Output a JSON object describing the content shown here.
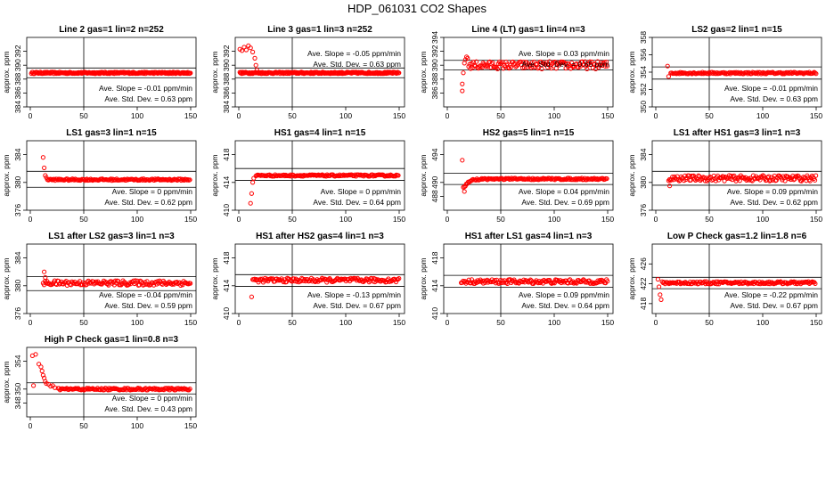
{
  "title": "HDP_061031  CO2 Shapes",
  "chart_data": [
    {
      "type": "scatter",
      "title": "Line 2 gas=1 lin=2 n=252",
      "ylabel": "approx. ppm",
      "xlim": [
        0,
        150
      ],
      "ylim": [
        384,
        394
      ],
      "yticks": [
        384,
        386,
        388,
        390,
        392
      ],
      "xticks": [
        0,
        50,
        100,
        150
      ],
      "hlines": [
        388.2,
        389.6
      ],
      "vline": 50,
      "series": [
        {
          "x": [
            1,
            150
          ],
          "level": 388.9,
          "noise": 0.12,
          "shape": "flat",
          "start": 1,
          "spacing": 0.6
        }
      ],
      "slope_text": "Ave. Slope =  -0.01  ppm/min",
      "std_text": "Ave. Std. Dev. =  0.63  ppm",
      "stat_pos": "lower"
    },
    {
      "type": "scatter",
      "title": "Line 3 gas=1 lin=3 n=252",
      "ylabel": "approx. ppm",
      "xlim": [
        0,
        150
      ],
      "ylim": [
        384,
        394
      ],
      "yticks": [
        384,
        386,
        388,
        390,
        392
      ],
      "xticks": [
        0,
        50,
        100,
        150
      ],
      "hlines": [
        388.2,
        389.6
      ],
      "vline": 50,
      "series": [
        {
          "level": 388.9,
          "noise": 0.12,
          "shape": "flat",
          "start": 1,
          "spacing": 0.6,
          "early": [
            [
              1,
              392.3
            ],
            [
              3,
              392.1
            ],
            [
              5,
              392.6
            ],
            [
              7,
              392.2
            ],
            [
              9,
              392.8
            ],
            [
              11,
              392.5
            ],
            [
              13,
              391.9
            ],
            [
              15,
              391.0
            ],
            [
              16,
              390.0
            ],
            [
              17,
              389.3
            ]
          ]
        }
      ],
      "slope_text": "Ave. Slope =  -0.05  ppm/min",
      "std_text": "Ave. Std. Dev. =  0.63  ppm",
      "stat_pos": "upper"
    },
    {
      "type": "scatter",
      "title": "Line 4 (LT) gas=1 lin=4 n=3",
      "ylabel": "approx. ppm",
      "xlim": [
        0,
        150
      ],
      "ylim": [
        384,
        394
      ],
      "yticks": [
        386,
        388,
        390,
        392,
        394
      ],
      "xticks": [
        0,
        50,
        100,
        150
      ],
      "hlines": [
        389.3,
        390.7
      ],
      "vline": 50,
      "series": [
        {
          "level": 390.0,
          "noise": 0.55,
          "shape": "flat",
          "start": 20,
          "spacing": 0.9,
          "early": [
            [
              14,
              386.3
            ],
            [
              14,
              387.3
            ],
            [
              15,
              388.9
            ],
            [
              16,
              390.3
            ],
            [
              17,
              390.8
            ],
            [
              18,
              391.2
            ],
            [
              19,
              391.0
            ]
          ]
        }
      ],
      "slope_text": "Ave. Slope =  0.03  ppm/min",
      "std_text": "Ave. Std. Dev. =  0.65  ppm",
      "stat_pos": "upper"
    },
    {
      "type": "scatter",
      "title": "LS2 gas=2 lin=1 n=15",
      "ylabel": "approx. ppm",
      "xlim": [
        0,
        150
      ],
      "ylim": [
        350,
        358
      ],
      "yticks": [
        350,
        352,
        354,
        356,
        358
      ],
      "xticks": [
        0,
        50,
        100,
        150
      ],
      "hlines": [
        353.2,
        354.6
      ],
      "vline": 50,
      "series": [
        {
          "level": 353.9,
          "noise": 0.1,
          "shape": "flat",
          "start": 14,
          "spacing": 0.9,
          "early": [
            [
              11,
              354.7
            ],
            [
              12,
              353.5
            ]
          ]
        }
      ],
      "slope_text": "Ave. Slope =  -0.01  ppm/min",
      "std_text": "Ave. Std. Dev. =  0.63  ppm",
      "stat_pos": "lower"
    },
    {
      "type": "scatter",
      "title": "LS1 gas=3 lin=1 n=15",
      "ylabel": "approx. ppm",
      "xlim": [
        0,
        150
      ],
      "ylim": [
        376,
        386
      ],
      "yticks": [
        376,
        380,
        384
      ],
      "xticks": [
        0,
        50,
        100,
        150
      ],
      "hlines": [
        379.3,
        381.6
      ],
      "vline": 50,
      "series": [
        {
          "level": 380.4,
          "noise": 0.12,
          "shape": "flat",
          "start": 16,
          "spacing": 0.9,
          "early": [
            [
              12,
              383.6
            ],
            [
              13,
              382.1
            ],
            [
              14,
              381.0
            ],
            [
              15,
              380.7
            ]
          ]
        }
      ],
      "slope_text": "Ave. Slope =  0  ppm/min",
      "std_text": "Ave. Std. Dev. =  0.62  ppm",
      "stat_pos": "lower"
    },
    {
      "type": "scatter",
      "title": "HS1 gas=4 lin=1 n=15",
      "ylabel": "approx. ppm",
      "xlim": [
        0,
        150
      ],
      "ylim": [
        410,
        420
      ],
      "yticks": [
        410,
        414,
        418
      ],
      "xticks": [
        0,
        50,
        100,
        150
      ],
      "hlines": [
        414.3,
        416.0
      ],
      "vline": 50,
      "series": [
        {
          "level": 415.0,
          "noise": 0.12,
          "shape": "flat",
          "start": 16,
          "spacing": 0.9,
          "early": [
            [
              11,
              411.0
            ],
            [
              12,
              412.4
            ],
            [
              13,
              414.0
            ],
            [
              14,
              414.6
            ]
          ]
        }
      ],
      "slope_text": "Ave. Slope =  0  ppm/min",
      "std_text": "Ave. Std. Dev. =  0.64  ppm",
      "stat_pos": "lower"
    },
    {
      "type": "scatter",
      "title": "HS2 gas=5 lin=1 n=15",
      "ylabel": "approx. ppm",
      "xlim": [
        0,
        150
      ],
      "ylim": [
        486,
        496
      ],
      "yticks": [
        488,
        490,
        494
      ],
      "yticklabels": [
        "488",
        "490",
        "494"
      ],
      "xticks": [
        0,
        50,
        100,
        150
      ],
      "hlines": [
        489.7,
        491.3
      ],
      "vline": 50,
      "series": [
        {
          "level": 490.5,
          "noise": 0.12,
          "shape": "recover",
          "start": 16,
          "spacing": 0.9,
          "early": [
            [
              14,
              493.2
            ],
            [
              15,
              489.3
            ],
            [
              16,
              488.7
            ]
          ]
        }
      ],
      "slope_text": "Ave. Slope =  0.04  ppm/min",
      "std_text": "Ave. Std. Dev. =  0.69  ppm",
      "stat_pos": "lower"
    },
    {
      "type": "scatter",
      "title": "LS1 after HS1 gas=3 lin=1 n=3",
      "ylabel": "approx. ppm",
      "xlim": [
        0,
        150
      ],
      "ylim": [
        376,
        386
      ],
      "yticks": [
        376,
        380,
        384
      ],
      "xticks": [
        0,
        50,
        100,
        150
      ],
      "hlines": [
        379.6,
        381.6
      ],
      "vline": 50,
      "series": [
        {
          "level": 380.6,
          "noise": 0.4,
          "shape": "flat",
          "start": 12,
          "spacing": 0.9,
          "early": [
            [
              13,
              379.5
            ]
          ]
        }
      ],
      "slope_text": "Ave. Slope =  0.09  ppm/min",
      "std_text": "Ave. Std. Dev. =  0.62  ppm",
      "stat_pos": "lower"
    },
    {
      "type": "scatter",
      "title": "LS1 after LS2 gas=3 lin=1 n=3",
      "ylabel": "approx. ppm",
      "xlim": [
        0,
        150
      ],
      "ylim": [
        376,
        386
      ],
      "yticks": [
        376,
        380,
        384
      ],
      "xticks": [
        0,
        50,
        100,
        150
      ],
      "hlines": [
        379.3,
        381.3
      ],
      "vline": 50,
      "series": [
        {
          "level": 380.4,
          "noise": 0.35,
          "shape": "flat",
          "start": 12,
          "spacing": 0.9,
          "early": [
            [
              13,
              382.0
            ],
            [
              14,
              381.2
            ]
          ]
        }
      ],
      "slope_text": "Ave. Slope =  -0.04  ppm/min",
      "std_text": "Ave. Std. Dev. =  0.59  ppm",
      "stat_pos": "lower"
    },
    {
      "type": "scatter",
      "title": "HS1 after HS2 gas=4 lin=1 n=3",
      "ylabel": "approx. ppm",
      "xlim": [
        0,
        150
      ],
      "ylim": [
        410,
        420
      ],
      "yticks": [
        410,
        414,
        418
      ],
      "xticks": [
        0,
        50,
        100,
        150
      ],
      "hlines": [
        413.9,
        415.6
      ],
      "vline": 50,
      "series": [
        {
          "level": 414.8,
          "noise": 0.3,
          "shape": "flat",
          "start": 13,
          "spacing": 0.9,
          "early": [
            [
              12,
              412.4
            ]
          ]
        }
      ],
      "slope_text": "Ave. Slope =  -0.13  ppm/min",
      "std_text": "Ave. Std. Dev. =  0.67  ppm",
      "stat_pos": "lower"
    },
    {
      "type": "scatter",
      "title": "HS1 after LS1 gas=4 lin=1 n=3",
      "ylabel": "approx. ppm",
      "xlim": [
        0,
        150
      ],
      "ylim": [
        410,
        420
      ],
      "yticks": [
        410,
        414,
        418
      ],
      "xticks": [
        0,
        50,
        100,
        150
      ],
      "hlines": [
        413.8,
        415.5
      ],
      "vline": 50,
      "series": [
        {
          "level": 414.6,
          "noise": 0.3,
          "shape": "flat",
          "start": 13,
          "spacing": 0.9,
          "early": []
        }
      ],
      "slope_text": "Ave. Slope =  0.09  ppm/min",
      "std_text": "Ave. Std. Dev. =  0.64  ppm",
      "stat_pos": "lower"
    },
    {
      "type": "scatter",
      "title": "Low P Check gas=1.2 lin=1.8 n=6",
      "ylabel": "approx. ppm",
      "xlim": [
        0,
        150
      ],
      "ylim": [
        416,
        430
      ],
      "yticks": [
        418,
        422,
        426
      ],
      "xticks": [
        0,
        50,
        100,
        150
      ],
      "hlines": [
        421.0,
        423.3
      ],
      "vline": 50,
      "series": [
        {
          "level": 422.2,
          "noise": 0.25,
          "shape": "flat",
          "start": 6,
          "spacing": 0.9,
          "early": [
            [
              2,
              422.9
            ],
            [
              3,
              421.4
            ],
            [
              4,
              419.8
            ],
            [
              5,
              418.8
            ]
          ]
        }
      ],
      "slope_text": "Ave. Slope =  -0.22  ppm/min",
      "std_text": "Ave. Std. Dev. =  0.67  ppm",
      "stat_pos": "lower"
    },
    {
      "type": "scatter",
      "title": "High P Check gas=1 lin=0.8 n=3",
      "ylabel": "approx. ppm",
      "xlim": [
        0,
        150
      ],
      "ylim": [
        346,
        356
      ],
      "yticks": [
        348,
        350,
        354
      ],
      "xticks": [
        0,
        50,
        100,
        150
      ],
      "hlines": [
        349.3,
        350.9
      ],
      "vline": 50,
      "series": [
        {
          "level": 350.0,
          "noise": 0.15,
          "shape": "flat",
          "start": 26,
          "spacing": 0.9,
          "early": [
            [
              2,
              354.8
            ],
            [
              3,
              350.5
            ],
            [
              5,
              355.0
            ],
            [
              8,
              353.6
            ],
            [
              10,
              353.2
            ],
            [
              11,
              352.6
            ],
            [
              12,
              352.0
            ],
            [
              13,
              351.6
            ],
            [
              14,
              351.1
            ],
            [
              15,
              350.8
            ],
            [
              17,
              350.7
            ],
            [
              19,
              350.4
            ],
            [
              21,
              350.5
            ],
            [
              23,
              350.2
            ]
          ]
        }
      ],
      "slope_text": "Ave. Slope =  0  ppm/min",
      "std_text": "Ave. Std. Dev. =  0.43  ppm",
      "stat_pos": "lower"
    }
  ],
  "colors": {
    "points": "#ff0000",
    "axes": "#000000"
  }
}
